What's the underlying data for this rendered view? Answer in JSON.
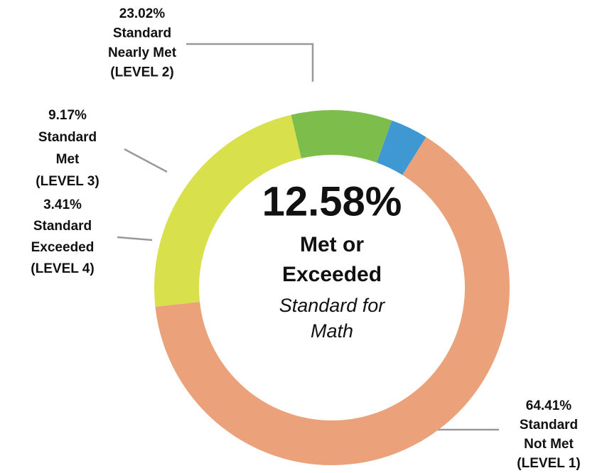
{
  "chart_data": {
    "type": "pie",
    "donut": true,
    "categories": [
      [
        "Standard",
        "Not Met",
        "(LEVEL 1)"
      ],
      [
        "Standard",
        "Nearly Met",
        "(LEVEL 2)"
      ],
      [
        "Standard",
        "Met",
        "(LEVEL 3)"
      ],
      [
        "Standard",
        "Exceeded",
        "(LEVEL 4)"
      ]
    ],
    "values": [
      64.41,
      23.02,
      9.17,
      3.41
    ],
    "value_labels": [
      "64.41%",
      "23.02%",
      "9.17%",
      "3.41%"
    ],
    "colors": [
      "#eba27b",
      "#d8e04c",
      "#7dbd4b",
      "#3f98d1"
    ],
    "center_text": {
      "headline": "12.58%",
      "bold": [
        "Met or",
        "Exceeded"
      ],
      "italic": [
        "Standard for",
        "Math"
      ]
    }
  }
}
